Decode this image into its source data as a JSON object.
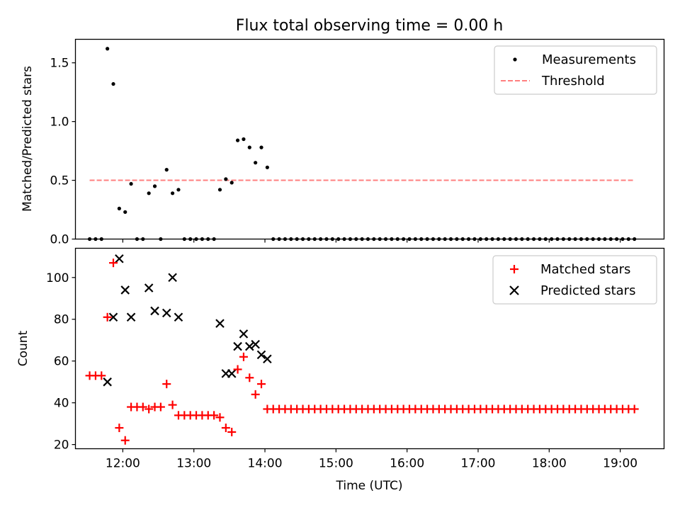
{
  "chart_data": [
    {
      "type": "scatter",
      "title": "Flux total observing time = 0.00 h",
      "xlabel": "",
      "ylabel": "Matched/Predicted stars",
      "xlim": [
        "11:20",
        "19:37"
      ],
      "ylim": [
        0,
        1.7
      ],
      "y_ticks": [
        0.0,
        0.5,
        1.0,
        1.5
      ],
      "y_tick_labels": [
        "0.0",
        "0.5",
        "1.0",
        "1.5"
      ],
      "legend_position": "top-right",
      "grid": false,
      "series": [
        {
          "name": "Measurements",
          "color": "#000000",
          "marker": "dot",
          "points": [
            [
              "11:32",
              0
            ],
            [
              "11:37",
              0
            ],
            [
              "11:42",
              0
            ],
            [
              "11:47",
              1.62
            ],
            [
              "11:52",
              1.32
            ],
            [
              "11:57",
              0.26
            ],
            [
              "12:02",
              0.23
            ],
            [
              "12:07",
              0.47
            ],
            [
              "12:12",
              0
            ],
            [
              "12:17",
              0
            ],
            [
              "12:22",
              0.39
            ],
            [
              "12:27",
              0.45
            ],
            [
              "12:32",
              0
            ],
            [
              "12:37",
              0.59
            ],
            [
              "12:42",
              0.39
            ],
            [
              "12:47",
              0.42
            ],
            [
              "12:52",
              0
            ],
            [
              "12:57",
              0
            ],
            [
              "13:02",
              0
            ],
            [
              "13:07",
              0
            ],
            [
              "13:12",
              0
            ],
            [
              "13:17",
              0
            ],
            [
              "13:22",
              0.42
            ],
            [
              "13:27",
              0.51
            ],
            [
              "13:32",
              0.48
            ],
            [
              "13:37",
              0.84
            ],
            [
              "13:42",
              0.85
            ],
            [
              "13:47",
              0.78
            ],
            [
              "13:52",
              0.65
            ],
            [
              "13:57",
              0.78
            ],
            [
              "14:02",
              0.61
            ],
            [
              "14:07",
              0
            ],
            [
              "14:12",
              0
            ],
            [
              "14:17",
              0
            ],
            [
              "14:22",
              0
            ],
            [
              "14:27",
              0
            ],
            [
              "14:32",
              0
            ],
            [
              "14:37",
              0
            ],
            [
              "14:42",
              0
            ],
            [
              "14:47",
              0
            ],
            [
              "14:52",
              0
            ],
            [
              "14:57",
              0
            ],
            [
              "15:02",
              0
            ],
            [
              "15:07",
              0
            ],
            [
              "15:12",
              0
            ],
            [
              "15:17",
              0
            ],
            [
              "15:22",
              0
            ],
            [
              "15:27",
              0
            ],
            [
              "15:32",
              0
            ],
            [
              "15:37",
              0
            ],
            [
              "15:42",
              0
            ],
            [
              "15:47",
              0
            ],
            [
              "15:52",
              0
            ],
            [
              "15:57",
              0
            ],
            [
              "16:02",
              0
            ],
            [
              "16:07",
              0
            ],
            [
              "16:12",
              0
            ],
            [
              "16:17",
              0
            ],
            [
              "16:22",
              0
            ],
            [
              "16:27",
              0
            ],
            [
              "16:32",
              0
            ],
            [
              "16:37",
              0
            ],
            [
              "16:42",
              0
            ],
            [
              "16:47",
              0
            ],
            [
              "16:52",
              0
            ],
            [
              "16:57",
              0
            ],
            [
              "17:02",
              0
            ],
            [
              "17:07",
              0
            ],
            [
              "17:12",
              0
            ],
            [
              "17:17",
              0
            ],
            [
              "17:22",
              0
            ],
            [
              "17:27",
              0
            ],
            [
              "17:32",
              0
            ],
            [
              "17:37",
              0
            ],
            [
              "17:42",
              0
            ],
            [
              "17:47",
              0
            ],
            [
              "17:52",
              0
            ],
            [
              "17:57",
              0
            ],
            [
              "18:02",
              0
            ],
            [
              "18:07",
              0
            ],
            [
              "18:12",
              0
            ],
            [
              "18:17",
              0
            ],
            [
              "18:22",
              0
            ],
            [
              "18:27",
              0
            ],
            [
              "18:32",
              0
            ],
            [
              "18:37",
              0
            ],
            [
              "18:42",
              0
            ],
            [
              "18:47",
              0
            ],
            [
              "18:52",
              0
            ],
            [
              "18:57",
              0
            ],
            [
              "19:02",
              0
            ],
            [
              "19:07",
              0
            ],
            [
              "19:12",
              0
            ]
          ]
        },
        {
          "name": "Threshold",
          "color": "#ff7f7f",
          "style": "dashed",
          "points": [
            [
              "11:32",
              0.5
            ],
            [
              "19:12",
              0.5
            ]
          ]
        }
      ]
    },
    {
      "type": "scatter",
      "title": "",
      "xlabel": "Time (UTC)",
      "ylabel": "Count",
      "xlim": [
        "11:20",
        "19:37"
      ],
      "ylim": [
        18,
        114
      ],
      "x_ticks": [
        "12:00",
        "13:00",
        "14:00",
        "15:00",
        "16:00",
        "17:00",
        "18:00",
        "19:00"
      ],
      "y_ticks": [
        20,
        40,
        60,
        80,
        100
      ],
      "y_tick_labels": [
        "20",
        "40",
        "60",
        "80",
        "100"
      ],
      "legend_position": "top-right",
      "grid": false,
      "series": [
        {
          "name": "Matched stars",
          "color": "#ff0000",
          "marker": "plus",
          "points": [
            [
              "11:32",
              53
            ],
            [
              "11:37",
              53
            ],
            [
              "11:42",
              53
            ],
            [
              "11:47",
              81
            ],
            [
              "11:52",
              107
            ],
            [
              "11:57",
              28
            ],
            [
              "12:02",
              22
            ],
            [
              "12:07",
              38
            ],
            [
              "12:12",
              38
            ],
            [
              "12:17",
              38
            ],
            [
              "12:22",
              37
            ],
            [
              "12:27",
              38
            ],
            [
              "12:32",
              38
            ],
            [
              "12:37",
              49
            ],
            [
              "12:42",
              39
            ],
            [
              "12:47",
              34
            ],
            [
              "12:52",
              34
            ],
            [
              "12:57",
              34
            ],
            [
              "13:02",
              34
            ],
            [
              "13:07",
              34
            ],
            [
              "13:12",
              34
            ],
            [
              "13:17",
              34
            ],
            [
              "13:22",
              33
            ],
            [
              "13:27",
              28
            ],
            [
              "13:32",
              26
            ],
            [
              "13:37",
              56
            ],
            [
              "13:42",
              62
            ],
            [
              "13:47",
              52
            ],
            [
              "13:52",
              44
            ],
            [
              "13:57",
              49
            ],
            [
              "14:02",
              37
            ],
            [
              "14:07",
              37
            ],
            [
              "14:12",
              37
            ],
            [
              "14:17",
              37
            ],
            [
              "14:22",
              37
            ],
            [
              "14:27",
              37
            ],
            [
              "14:32",
              37
            ],
            [
              "14:37",
              37
            ],
            [
              "14:42",
              37
            ],
            [
              "14:47",
              37
            ],
            [
              "14:52",
              37
            ],
            [
              "14:57",
              37
            ],
            [
              "15:02",
              37
            ],
            [
              "15:07",
              37
            ],
            [
              "15:12",
              37
            ],
            [
              "15:17",
              37
            ],
            [
              "15:22",
              37
            ],
            [
              "15:27",
              37
            ],
            [
              "15:32",
              37
            ],
            [
              "15:37",
              37
            ],
            [
              "15:42",
              37
            ],
            [
              "15:47",
              37
            ],
            [
              "15:52",
              37
            ],
            [
              "15:57",
              37
            ],
            [
              "16:02",
              37
            ],
            [
              "16:07",
              37
            ],
            [
              "16:12",
              37
            ],
            [
              "16:17",
              37
            ],
            [
              "16:22",
              37
            ],
            [
              "16:27",
              37
            ],
            [
              "16:32",
              37
            ],
            [
              "16:37",
              37
            ],
            [
              "16:42",
              37
            ],
            [
              "16:47",
              37
            ],
            [
              "16:52",
              37
            ],
            [
              "16:57",
              37
            ],
            [
              "17:02",
              37
            ],
            [
              "17:07",
              37
            ],
            [
              "17:12",
              37
            ],
            [
              "17:17",
              37
            ],
            [
              "17:22",
              37
            ],
            [
              "17:27",
              37
            ],
            [
              "17:32",
              37
            ],
            [
              "17:37",
              37
            ],
            [
              "17:42",
              37
            ],
            [
              "17:47",
              37
            ],
            [
              "17:52",
              37
            ],
            [
              "17:57",
              37
            ],
            [
              "18:02",
              37
            ],
            [
              "18:07",
              37
            ],
            [
              "18:12",
              37
            ],
            [
              "18:17",
              37
            ],
            [
              "18:22",
              37
            ],
            [
              "18:27",
              37
            ],
            [
              "18:32",
              37
            ],
            [
              "18:37",
              37
            ],
            [
              "18:42",
              37
            ],
            [
              "18:47",
              37
            ],
            [
              "18:52",
              37
            ],
            [
              "18:57",
              37
            ],
            [
              "19:02",
              37
            ],
            [
              "19:07",
              37
            ],
            [
              "19:12",
              37
            ]
          ]
        },
        {
          "name": "Predicted stars",
          "color": "#000000",
          "marker": "x",
          "points": [
            [
              "11:47",
              50
            ],
            [
              "11:52",
              81
            ],
            [
              "11:57",
              109
            ],
            [
              "12:02",
              94
            ],
            [
              "12:07",
              81
            ],
            [
              "12:22",
              95
            ],
            [
              "12:27",
              84
            ],
            [
              "12:37",
              83
            ],
            [
              "12:42",
              100
            ],
            [
              "12:47",
              81
            ],
            [
              "13:22",
              78
            ],
            [
              "13:27",
              54
            ],
            [
              "13:32",
              54
            ],
            [
              "13:37",
              67
            ],
            [
              "13:42",
              73
            ],
            [
              "13:47",
              67
            ],
            [
              "13:52",
              68
            ],
            [
              "13:57",
              63
            ],
            [
              "14:02",
              61
            ]
          ]
        }
      ]
    }
  ]
}
